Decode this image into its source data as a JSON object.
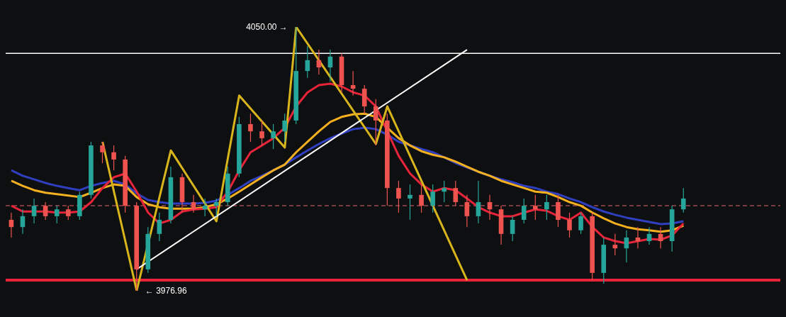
{
  "chart_data": {
    "type": "candlestick",
    "categories": [
      null,
      null,
      null,
      null,
      null,
      null,
      null,
      null,
      null,
      null,
      null,
      null,
      null,
      null,
      null,
      null,
      null,
      null,
      null,
      null,
      null,
      null,
      null,
      null,
      null,
      null,
      null,
      null,
      null,
      null,
      null,
      null,
      null,
      null,
      null,
      null,
      null,
      null,
      null,
      null,
      null,
      null,
      null,
      null,
      null,
      null,
      null,
      null,
      null,
      null,
      null,
      null,
      null,
      null,
      null,
      null,
      null,
      null,
      null,
      null,
      null,
      null,
      null,
      null,
      null,
      null,
      null,
      null
    ],
    "ohlc": [
      [
        3996.6,
        3998.6,
        3991.7,
        3994.6
      ],
      [
        3994.6,
        3999.5,
        3992.7,
        3997.6
      ],
      [
        3997.6,
        4002.5,
        3995.6,
        4000.5
      ],
      [
        4000.5,
        4001.5,
        3996.6,
        3997.6
      ],
      [
        3997.6,
        4000.5,
        3995.6,
        3999.5
      ],
      [
        3999.5,
        4000.5,
        3996.6,
        3997.6
      ],
      [
        3997.6,
        4004.4,
        3996.6,
        4003.5
      ],
      [
        4003.5,
        4018.2,
        4002.5,
        4017.2
      ],
      [
        4017.2,
        4018.2,
        4012.3,
        4015.3
      ],
      [
        4015.3,
        4017.2,
        4010.3,
        4013.3
      ],
      [
        4013.3,
        4014.3,
        3998.6,
        4000.5
      ],
      [
        4000.5,
        4001.5,
        3976.96,
        3982.9
      ],
      [
        3982.9,
        3994.6,
        3981.9,
        3992.7
      ],
      [
        3992.7,
        3998.6,
        3990.7,
        3996.6
      ],
      [
        3996.6,
        4011.3,
        3995.6,
        4008.4
      ],
      [
        4008.4,
        4009.4,
        3998.6,
        4001.5
      ],
      [
        4001.5,
        4003.5,
        3998.6,
        3999.5
      ],
      [
        3999.5,
        4002.5,
        3997.6,
        4000.5
      ],
      [
        4000.5,
        4002.5,
        3997.6,
        4001.5
      ],
      [
        4001.5,
        4011.3,
        4000.5,
        4009.4
      ],
      [
        4009.4,
        4025.1,
        4008.4,
        4023.1
      ],
      [
        4023.1,
        4026.0,
        4018.2,
        4021.1
      ],
      [
        4021.1,
        4024.1,
        4017.2,
        4019.2
      ],
      [
        4019.2,
        4023.1,
        4016.2,
        4021.1
      ],
      [
        4021.1,
        4026.0,
        4018.2,
        4024.1
      ],
      [
        4024.1,
        4050.0,
        4023.1,
        4037.8
      ],
      [
        4037.8,
        4044.7,
        4035.9,
        4040.8
      ],
      [
        4040.8,
        4043.7,
        4036.8,
        4038.8
      ],
      [
        4038.8,
        4043.7,
        4034.9,
        4041.8
      ],
      [
        4041.8,
        4042.7,
        4031.9,
        4033.9
      ],
      [
        4033.9,
        4037.8,
        4031.0,
        4032.9
      ],
      [
        4032.9,
        4033.9,
        4026.0,
        4028.0
      ],
      [
        4028.0,
        4030.0,
        4017.2,
        4024.1
      ],
      [
        4024.1,
        4026.0,
        4000.5,
        4005.4
      ],
      [
        4005.4,
        4007.4,
        3998.6,
        4002.5
      ],
      [
        4002.5,
        4006.4,
        3996.6,
        4003.5
      ],
      [
        4003.5,
        4006.4,
        3998.6,
        4000.5
      ],
      [
        4000.5,
        4006.4,
        3998.6,
        4004.4
      ],
      [
        4004.4,
        4007.4,
        4001.5,
        4005.4
      ],
      [
        4005.4,
        4007.4,
        4000.5,
        4001.5
      ],
      [
        4001.5,
        4003.5,
        3994.6,
        3997.6
      ],
      [
        3997.6,
        4007.4,
        3995.6,
        4001.5
      ],
      [
        4001.5,
        4003.5,
        3996.6,
        3999.5
      ],
      [
        3999.5,
        4000.5,
        3989.7,
        3992.7
      ],
      [
        3992.7,
        3997.6,
        3990.7,
        3996.6
      ],
      [
        3996.6,
        4002.5,
        3995.6,
        4000.5
      ],
      [
        4000.5,
        4003.5,
        3996.6,
        3999.5
      ],
      [
        3999.5,
        4003.5,
        3996.6,
        4001.5
      ],
      [
        4001.5,
        4003.5,
        3994.6,
        3996.6
      ],
      [
        3996.6,
        3998.6,
        3991.7,
        3993.7
      ],
      [
        3993.7,
        3998.6,
        3992.7,
        3997.6
      ],
      [
        3997.6,
        3998.6,
        3979.9,
        3981.9
      ],
      [
        3981.9,
        3991.7,
        3978.9,
        3989.7
      ],
      [
        3989.7,
        3992.7,
        3986.8,
        3988.7
      ],
      [
        3988.7,
        3993.7,
        3984.8,
        3991.7
      ],
      [
        3991.7,
        3994.6,
        3988.7,
        3990.7
      ],
      [
        3990.7,
        3994.6,
        3989.7,
        3992.7
      ],
      [
        3992.7,
        3994.6,
        3988.7,
        3990.7
      ],
      [
        3990.7,
        4000.5,
        3987.8,
        3999.5
      ],
      [
        3999.5,
        4005.4,
        3998.6,
        4002.5
      ],
      null,
      null,
      null,
      null,
      null,
      null,
      null,
      null
    ],
    "colors": [
      "#ef5350",
      "#26a69a",
      "#26a69a",
      "#ef5350",
      "#26a69a",
      "#ef5350",
      "#26a69a",
      "#26a69a",
      "#ef5350",
      "#ef5350",
      "#ef5350",
      "#ef5350",
      "#26a69a",
      "#26a69a",
      "#26a69a",
      "#ef5350",
      "#ef5350",
      "#26a69a",
      "#26a69a",
      "#26a69a",
      "#26a69a",
      "#ef5350",
      "#ef5350",
      "#26a69a",
      "#26a69a",
      "#26a69a",
      "#26a69a",
      "#ef5350",
      "#26a69a",
      "#ef5350",
      "#ef5350",
      "#ef5350",
      "#ef5350",
      "#ef5350",
      "#ef5350",
      "#26a69a",
      "#ef5350",
      "#26a69a",
      "#26a69a",
      "#ef5350",
      "#ef5350",
      "#26a69a",
      "#ef5350",
      "#ef5350",
      "#26a69a",
      "#26a69a",
      "#ef5350",
      "#26a69a",
      "#ef5350",
      "#ef5350",
      "#26a69a",
      "#ef5350",
      "#26a69a",
      "#ef5350",
      "#26a69a",
      "#ef5350",
      "#26a69a",
      "#ef5350",
      "#26a69a",
      "#26a69a",
      null,
      null,
      null,
      null,
      null,
      null,
      null,
      null
    ],
    "series": [
      {
        "type": "line",
        "color": "#2f3fc0",
        "values": [
          4010.3,
          4008.8,
          4007.8,
          4006.8,
          4006.0,
          4005.4,
          4004.8,
          4006.0,
          4006.8,
          4007.4,
          4006.4,
          4003.9,
          4002.1,
          4001.5,
          4001.1,
          4001.1,
          4001.1,
          4001.3,
          4001.9,
          4003.5,
          4005.4,
          4007.4,
          4008.8,
          4010.3,
          4011.9,
          4013.9,
          4015.8,
          4017.6,
          4019.2,
          4020.5,
          4021.7,
          4022.1,
          4021.7,
          4020.2,
          4018.2,
          4017.2,
          4016.2,
          4015.3,
          4013.9,
          4012.3,
          4011.1,
          4009.9,
          4008.8,
          4007.8,
          4007.0,
          4006.0,
          4005.4,
          4004.4,
          4003.7,
          4002.5,
          4001.5,
          4000.1,
          3998.9,
          3998.0,
          3997.2,
          3996.6,
          3996.0,
          3995.4,
          3995.6,
          3996.2,
          null,
          null,
          null,
          null,
          null,
          null,
          null,
          null
        ]
      },
      {
        "type": "line",
        "color": "#f5b020",
        "values": [
          4007.4,
          4006.0,
          4004.8,
          4004.1,
          4003.7,
          4003.3,
          4002.9,
          4004.1,
          4005.4,
          4006.4,
          4006.0,
          4002.9,
          4000.9,
          4000.1,
          3999.7,
          3999.7,
          3999.7,
          4000.1,
          4000.9,
          4002.5,
          4004.4,
          4006.4,
          4008.4,
          4010.3,
          4011.9,
          4015.3,
          4018.2,
          4021.1,
          4023.7,
          4025.1,
          4025.8,
          4026.0,
          4025.1,
          4022.1,
          4019.2,
          4017.2,
          4015.6,
          4014.6,
          4013.9,
          4012.7,
          4011.3,
          4009.9,
          4008.8,
          4007.4,
          4006.4,
          4005.4,
          4004.4,
          4004.1,
          4002.9,
          4001.5,
          4000.5,
          3998.6,
          3997.0,
          3995.6,
          3994.6,
          3994.0,
          3993.7,
          3993.3,
          3993.7,
          3995.0,
          null,
          null,
          null,
          null,
          null,
          null,
          null,
          null
        ]
      },
      {
        "type": "line",
        "color": "#e8243a",
        "values": [
          4000.5,
          3998.9,
          3998.9,
          3998.9,
          3998.6,
          3998.6,
          3998.9,
          4001.5,
          4005.4,
          4008.4,
          4009.4,
          4004.4,
          3998.6,
          3995.6,
          3996.6,
          3998.9,
          3999.5,
          3999.7,
          4000.1,
          4004.4,
          4010.3,
          4015.3,
          4017.2,
          4019.2,
          4022.1,
          4028.0,
          4031.9,
          4033.9,
          4034.3,
          4033.5,
          4031.9,
          4031.0,
          4028.0,
          4021.1,
          4014.3,
          4009.4,
          4006.4,
          4004.4,
          4005.4,
          4004.8,
          4002.5,
          4000.1,
          3998.6,
          3997.6,
          3997.6,
          3998.6,
          3999.5,
          3999.1,
          3997.6,
          3996.6,
          3998.6,
          3994.6,
          3991.7,
          3990.7,
          3990.1,
          3990.7,
          3991.3,
          3991.1,
          3992.3,
          3995.6,
          null,
          null,
          null,
          null,
          null,
          null,
          null,
          null
        ]
      },
      {
        "type": "line",
        "color": "#d9b51c",
        "values": [
          null,
          null,
          null,
          null,
          null,
          null,
          null,
          null,
          4018.2,
          null,
          null,
          3977.0,
          null,
          null,
          4015.8,
          null,
          null,
          null,
          3996.2,
          null,
          4031.0,
          null,
          null,
          null,
          4016.6,
          4050.0,
          null,
          null,
          null,
          null,
          null,
          null,
          4017.6,
          4028.0,
          null,
          null,
          null,
          null,
          null,
          null,
          3979.9,
          null,
          null,
          null,
          null,
          null,
          null,
          null,
          null,
          null,
          null,
          null,
          null,
          null,
          null,
          null,
          null,
          null,
          null,
          null,
          null,
          null,
          null,
          null,
          null,
          null,
          null,
          null
        ]
      },
      {
        "type": "line",
        "color": "#ffffff",
        "values": [
          null,
          null,
          null,
          null,
          null,
          null,
          null,
          null,
          null,
          null,
          null,
          3982.9,
          null,
          null,
          null,
          null,
          null,
          null,
          null,
          null,
          null,
          null,
          null,
          null,
          null,
          null,
          null,
          null,
          null,
          null,
          null,
          null,
          null,
          null,
          null,
          null,
          null,
          null,
          null,
          null,
          4043.7,
          null,
          null,
          null,
          null,
          null,
          null,
          null,
          null,
          null,
          null,
          null,
          null,
          null,
          null,
          null,
          null,
          null,
          null,
          null,
          null,
          null,
          null,
          null,
          null,
          null,
          null,
          null
        ]
      }
    ],
    "ref_lines": [
      {
        "axis": "y",
        "value": 4042.7,
        "color": "#ffffff",
        "line_style": "solid"
      },
      {
        "axis": "y",
        "value": 4000.5,
        "color": "#a04850",
        "line_style": "dashed"
      },
      {
        "axis": "y",
        "value": 3979.9,
        "color": "#e8243a",
        "line_style": "solid"
      }
    ],
    "annotations": [
      "4050.00 →",
      "← 3976.96"
    ],
    "tick_labels": false
  }
}
